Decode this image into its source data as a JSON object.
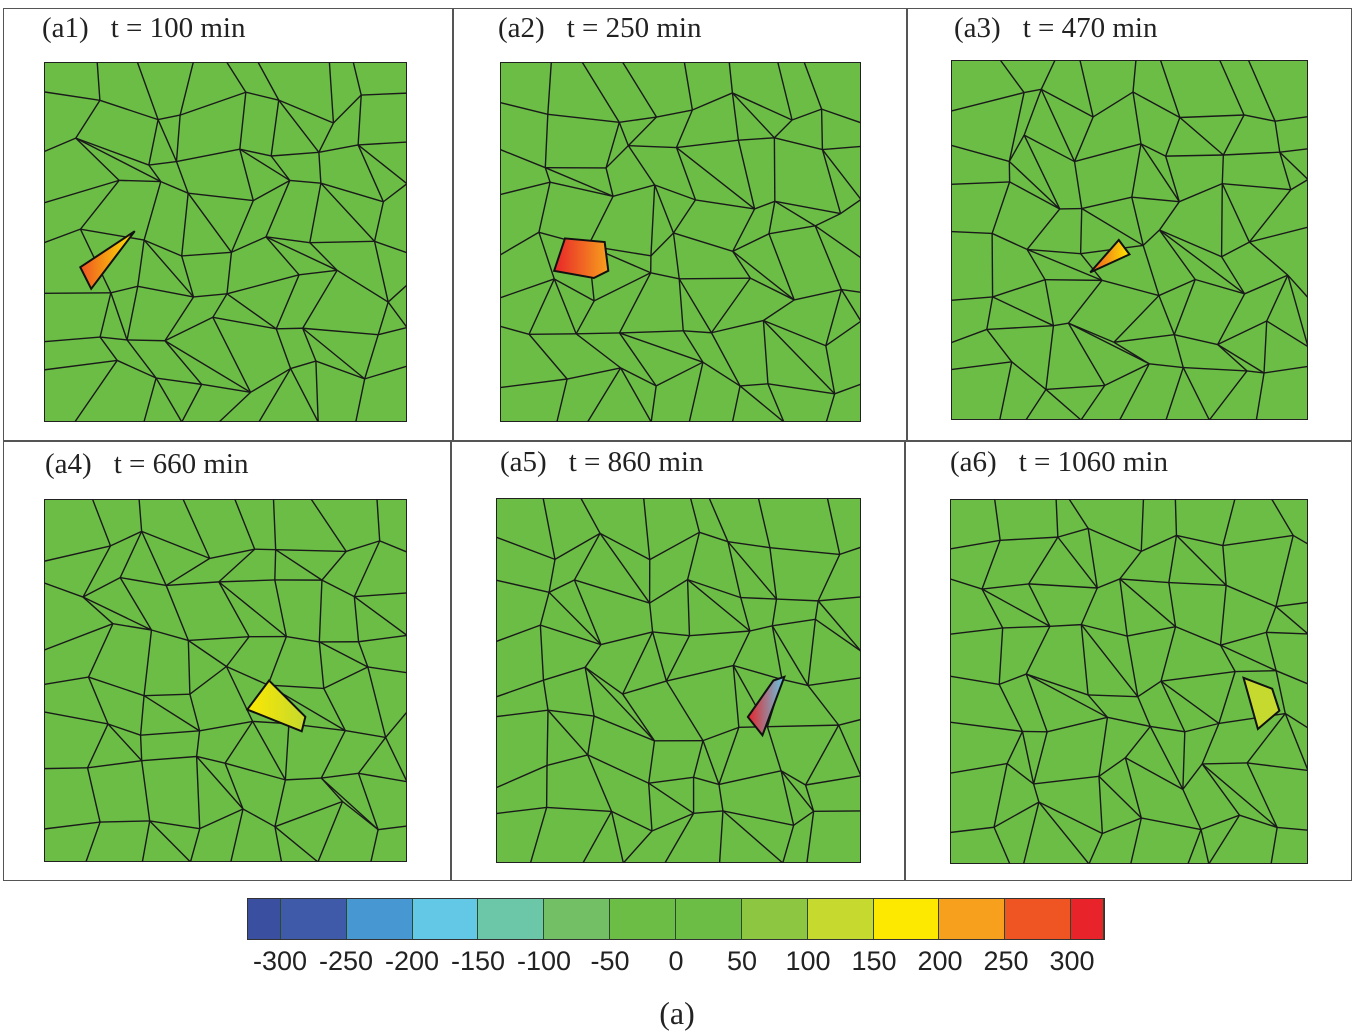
{
  "panels": [
    {
      "id": "(a1)",
      "time": "t = 100 min"
    },
    {
      "id": "(a2)",
      "time": "t = 250 min"
    },
    {
      "id": "(a3)",
      "time": "t = 470 min"
    },
    {
      "id": "(a4)",
      "time": "t = 660 min"
    },
    {
      "id": "(a5)",
      "time": "t = 860 min"
    },
    {
      "id": "(a6)",
      "time": "t = 1060 min"
    }
  ],
  "colorbar": {
    "ticks": [
      "-300",
      "-250",
      "-200",
      "-150",
      "-100",
      "-50",
      "0",
      "50",
      "100",
      "150",
      "200",
      "250",
      "300"
    ],
    "colors": [
      "#3a4fa0",
      "#3f5aa8",
      "#4697d2",
      "#62c8e6",
      "#6cc6a8",
      "#72bf65",
      "#6bbd45",
      "#6bbd45",
      "#8dc640",
      "#c5d92e",
      "#fde800",
      "#f7a01d",
      "#ef5423",
      "#e8242a"
    ]
  },
  "grain_color": "#6bbd45",
  "caption": "(a)"
}
